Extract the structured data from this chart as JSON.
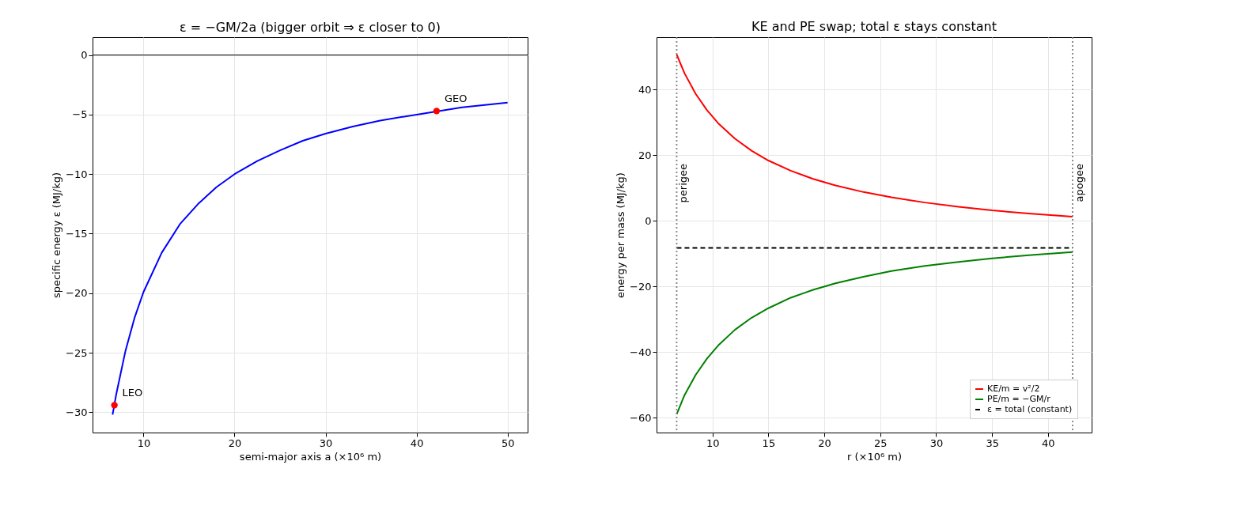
{
  "chart_data": [
    {
      "type": "line",
      "title": "ε = −GM/2a  (bigger orbit ⇒ ε closer to 0)",
      "xlabel": "semi-major axis  a  (×10⁶ m)",
      "ylabel": "specific energy  ε  (MJ/kg)",
      "xlim": [
        4.4,
        52.2
      ],
      "ylim": [
        -31.7,
        1.5
      ],
      "xticks": [
        10,
        20,
        30,
        40,
        50
      ],
      "yticks": [
        0,
        -5,
        -10,
        -15,
        -20,
        -25,
        -30
      ],
      "grid": true,
      "series": [
        {
          "color": "#0000ff",
          "x": [
            6.6,
            7,
            8,
            9,
            10,
            12,
            14,
            16,
            18,
            20,
            22.5,
            25,
            27.5,
            30,
            33,
            36,
            40,
            45,
            50
          ],
          "values": [
            -30.2,
            -28.5,
            -24.9,
            -22.1,
            -19.9,
            -16.6,
            -14.2,
            -12.5,
            -11.1,
            -10.0,
            -8.9,
            -8.0,
            -7.2,
            -6.6,
            -6.0,
            -5.5,
            -5.0,
            -4.4,
            -4.0
          ]
        },
        {
          "type": "scatter",
          "color": "#ff0000",
          "marker": "circle",
          "x": [
            6.8,
            42.2
          ],
          "values": [
            -29.4,
            -4.7
          ]
        }
      ],
      "ref_lines": [
        {
          "axis": "y",
          "value": 0,
          "color": "#000000",
          "line_style": "solid"
        }
      ],
      "annotations": [
        {
          "text": "LEO",
          "x": 6.8,
          "y": -29.4
        },
        {
          "text": "GEO",
          "x": 42.2,
          "y": -4.7
        }
      ]
    },
    {
      "type": "line",
      "title": "KE and PE swap; total ε stays constant",
      "xlabel": "r  (×10⁶ m)",
      "ylabel": "energy per mass  (MJ/kg)",
      "xlim": [
        5.0,
        43.9
      ],
      "ylim": [
        -64.5,
        56
      ],
      "xticks": [
        10,
        15,
        20,
        25,
        30,
        35,
        40
      ],
      "yticks": [
        -60,
        -40,
        -20,
        0,
        20,
        40
      ],
      "grid": true,
      "legend": "bottom right",
      "series": [
        {
          "name": "KE/m = v²/2",
          "color": "#ff0000",
          "x": [
            6.8,
            7.5,
            8.5,
            9.5,
            10.5,
            12,
            13.5,
            15,
            17,
            19,
            21,
            23.5,
            26,
            29,
            32,
            35,
            38.5,
            42.2
          ],
          "values": [
            50.7,
            45.0,
            38.7,
            33.8,
            29.8,
            25.1,
            21.4,
            18.4,
            15.3,
            12.8,
            10.8,
            8.8,
            7.2,
            5.6,
            4.3,
            3.2,
            2.2,
            1.3
          ]
        },
        {
          "name": "PE/m = −GM/r",
          "color": "#008000",
          "x": [
            6.8,
            7.5,
            8.5,
            9.5,
            10.5,
            12,
            13.5,
            15,
            17,
            19,
            21,
            23.5,
            26,
            29,
            32,
            35,
            38.5,
            42.2
          ],
          "values": [
            -58.9,
            -53.1,
            -46.9,
            -42.0,
            -38.0,
            -33.2,
            -29.5,
            -26.6,
            -23.4,
            -21.0,
            -19.0,
            -17.0,
            -15.3,
            -13.7,
            -12.5,
            -11.4,
            -10.4,
            -9.5
          ]
        },
        {
          "name": "ε = total (constant)",
          "color": "#000000",
          "line_style": "dashed",
          "x": [
            6.8,
            42.2
          ],
          "values": [
            -8.2,
            -8.2
          ]
        }
      ],
      "ref_lines": [
        {
          "axis": "x",
          "value": 6.8,
          "label": "perigee",
          "color": "#808080",
          "line_style": "dotted"
        },
        {
          "axis": "x",
          "value": 42.2,
          "label": "apogee",
          "color": "#808080",
          "line_style": "dotted"
        }
      ]
    }
  ]
}
